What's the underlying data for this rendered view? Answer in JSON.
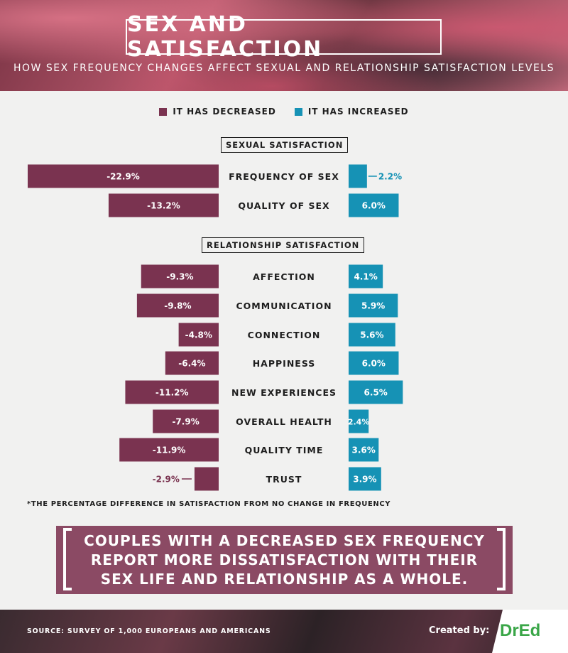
{
  "title": "SEX AND SATISFACTION",
  "subtitle": "HOW SEX FREQUENCY CHANGES AFFECT SEXUAL AND RELATIONSHIP SATISFACTION LEVELS",
  "colors": {
    "decreased": "#7a3350",
    "increased": "#1692b5"
  },
  "legend": {
    "decreased": "IT HAS DECREASED",
    "increased": "IT HAS INCREASED"
  },
  "chart_data": {
    "type": "bar",
    "orientation": "diverging-horizontal",
    "legend_position": "top-center",
    "groups": [
      {
        "label": "SEXUAL SATISFACTION",
        "categories": [
          "FREQUENCY OF SEX",
          "QUALITY OF SEX"
        ],
        "decreased": [
          -22.9,
          -13.2
        ],
        "increased": [
          2.2,
          6.0
        ]
      },
      {
        "label": "RELATIONSHIP SATISFACTION",
        "categories": [
          "AFFECTION",
          "COMMUNICATION",
          "CONNECTION",
          "HAPPINESS",
          "NEW EXPERIENCES",
          "OVERALL HEALTH",
          "QUALITY TIME",
          "TRUST"
        ],
        "decreased": [
          -9.3,
          -9.8,
          -4.8,
          -6.4,
          -11.2,
          -7.9,
          -11.9,
          -2.9
        ],
        "increased": [
          4.1,
          5.9,
          5.6,
          6.0,
          6.5,
          2.4,
          3.6,
          3.9
        ]
      }
    ],
    "series": [
      {
        "name": "IT HAS DECREASED",
        "key": "decreased"
      },
      {
        "name": "IT HAS INCREASED",
        "key": "increased"
      }
    ]
  },
  "footnote": "*THE PERCENTAGE DIFFERENCE IN SATISFACTION FROM NO CHANGE IN FREQUENCY",
  "callout": {
    "lines": [
      "COUPLES WITH A DECREASED SEX FREQUENCY",
      "REPORT MORE DISSATISFACTION WITH THEIR",
      "SEX LIFE AND RELATIONSHIP AS A WHOLE."
    ]
  },
  "footer": {
    "source": "SOURCE: SURVEY OF 1,000 EUROPEANS AND AMERICANS",
    "created_by": "Created by:",
    "logo": "DrEd"
  }
}
